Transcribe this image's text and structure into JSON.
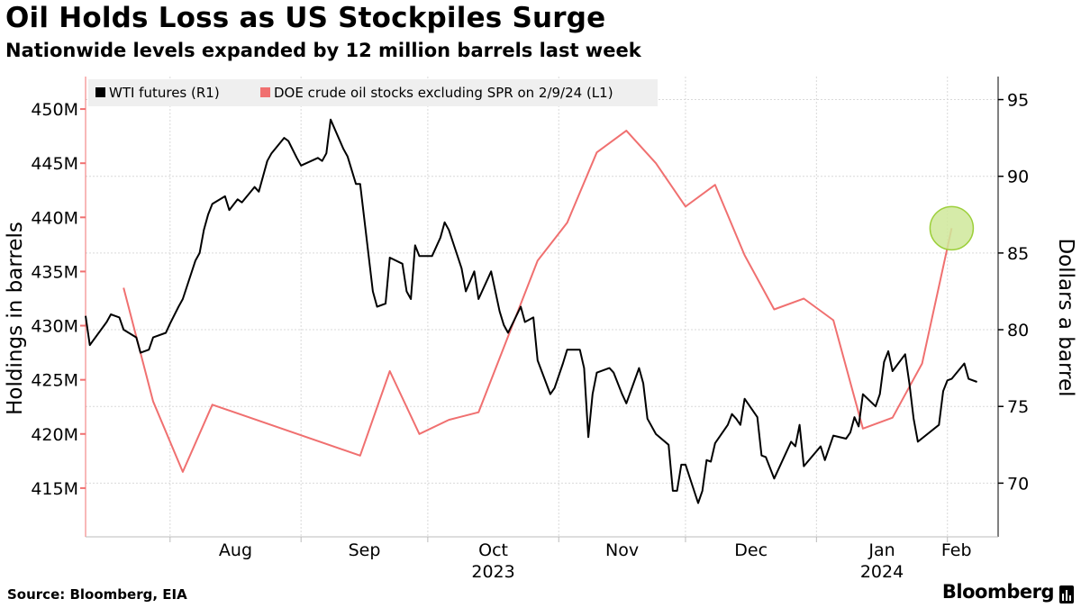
{
  "title": "Oil Holds Loss as US Stockpiles Surge",
  "subtitle": "Nationwide levels expanded by 12 million barrels last week",
  "footer": {
    "source": "Source: Bloomberg, EIA",
    "brand": "Bloomberg"
  },
  "colors": {
    "wti": "#000000",
    "stocks": "#f07070",
    "highlight_fill": "#cfe89a",
    "highlight_stroke": "#9ccf3a",
    "legend_bg": "#efefef",
    "grid": "#d9d9d9"
  },
  "icons": {
    "brand": "bloomberg-terminal-icon"
  },
  "chart_data": {
    "type": "line",
    "title": "Oil Holds Loss as US Stockpiles Surge",
    "subtitle": "Nationwide levels expanded by 12 million barrels last week",
    "x_tick_labels": [
      "Aug",
      "Sep",
      "Oct",
      "Nov",
      "Dec",
      "Jan",
      "Feb"
    ],
    "x_ticks": [
      "2023-08-01",
      "2023-09-01",
      "2023-10-01",
      "2023-11-01",
      "2023-12-01",
      "2024-01-01",
      "2024-02-01"
    ],
    "x_year_labels": [
      {
        "label": "2023",
        "date": "2023-10-01"
      },
      {
        "label": "2024",
        "date": "2024-01-01"
      }
    ],
    "xlim": [
      "2023-07-12",
      "2024-02-13"
    ],
    "left_axis": {
      "label": "Holdings in barrels",
      "ylim": [
        410.5,
        453
      ],
      "ticks": [
        415,
        420,
        425,
        430,
        435,
        440,
        445,
        450
      ],
      "tick_labels": [
        "415M",
        "420M",
        "425M",
        "430M",
        "435M",
        "440M",
        "445M",
        "450M"
      ]
    },
    "right_axis": {
      "label": "Dollars a barrel",
      "ylim": [
        66.5,
        96.5
      ],
      "ticks": [
        70,
        75,
        80,
        85,
        90,
        95
      ],
      "tick_labels": [
        "70",
        "75",
        "80",
        "85",
        "90",
        "95"
      ]
    },
    "legend_position": "top-left",
    "grid": true,
    "series": [
      {
        "name": "WTI futures (R1)",
        "axis": "right",
        "color": "#000000",
        "points": [
          [
            "2023-07-12",
            80.9
          ],
          [
            "2023-07-13",
            79.0
          ],
          [
            "2023-07-17",
            80.5
          ],
          [
            "2023-07-18",
            81.0
          ],
          [
            "2023-07-20",
            80.8
          ],
          [
            "2023-07-21",
            80.0
          ],
          [
            "2023-07-24",
            79.5
          ],
          [
            "2023-07-25",
            78.5
          ],
          [
            "2023-07-27",
            78.7
          ],
          [
            "2023-07-28",
            79.5
          ],
          [
            "2023-07-31",
            79.8
          ],
          [
            "2023-08-01",
            80.4
          ],
          [
            "2023-08-03",
            81.5
          ],
          [
            "2023-08-04",
            82.0
          ],
          [
            "2023-08-07",
            84.5
          ],
          [
            "2023-08-08",
            85.0
          ],
          [
            "2023-08-09",
            86.5
          ],
          [
            "2023-08-10",
            87.5
          ],
          [
            "2023-08-11",
            88.2
          ],
          [
            "2023-08-14",
            88.7
          ],
          [
            "2023-08-15",
            87.8
          ],
          [
            "2023-08-17",
            88.5
          ],
          [
            "2023-08-18",
            88.3
          ],
          [
            "2023-08-21",
            89.3
          ],
          [
            "2023-08-22",
            89.0
          ],
          [
            "2023-08-24",
            91.0
          ],
          [
            "2023-08-25",
            91.5
          ],
          [
            "2023-08-28",
            92.5
          ],
          [
            "2023-08-29",
            92.3
          ],
          [
            "2023-08-31",
            91.2
          ],
          [
            "2023-09-01",
            90.7
          ],
          [
            "2023-09-05",
            91.2
          ],
          [
            "2023-09-06",
            91.0
          ],
          [
            "2023-09-07",
            91.5
          ],
          [
            "2023-09-08",
            93.7
          ],
          [
            "2023-09-11",
            91.8
          ],
          [
            "2023-09-12",
            91.3
          ],
          [
            "2023-09-14",
            89.5
          ],
          [
            "2023-09-15",
            89.5
          ],
          [
            "2023-09-18",
            82.5
          ],
          [
            "2023-09-19",
            81.5
          ],
          [
            "2023-09-21",
            81.7
          ],
          [
            "2023-09-22",
            84.7
          ],
          [
            "2023-09-25",
            84.3
          ],
          [
            "2023-09-26",
            82.5
          ],
          [
            "2023-09-27",
            82.0
          ],
          [
            "2023-09-28",
            85.5
          ],
          [
            "2023-09-29",
            84.8
          ],
          [
            "2023-10-02",
            84.8
          ],
          [
            "2023-10-04",
            86.0
          ],
          [
            "2023-10-05",
            87.0
          ],
          [
            "2023-10-06",
            86.5
          ],
          [
            "2023-10-09",
            84.0
          ],
          [
            "2023-10-10",
            82.5
          ],
          [
            "2023-10-12",
            83.8
          ],
          [
            "2023-10-13",
            82.0
          ],
          [
            "2023-10-16",
            83.8
          ],
          [
            "2023-10-18",
            81.2
          ],
          [
            "2023-10-19",
            80.3
          ],
          [
            "2023-10-20",
            79.8
          ],
          [
            "2023-10-23",
            81.5
          ],
          [
            "2023-10-24",
            80.5
          ],
          [
            "2023-10-26",
            80.8
          ],
          [
            "2023-10-27",
            78.0
          ],
          [
            "2023-10-30",
            75.8
          ],
          [
            "2023-10-31",
            76.2
          ],
          [
            "2023-11-02",
            77.8
          ],
          [
            "2023-11-03",
            78.7
          ],
          [
            "2023-11-06",
            78.7
          ],
          [
            "2023-11-07",
            77.5
          ],
          [
            "2023-11-08",
            73.0
          ],
          [
            "2023-11-09",
            75.8
          ],
          [
            "2023-11-10",
            77.2
          ],
          [
            "2023-11-13",
            77.5
          ],
          [
            "2023-11-14",
            77.2
          ],
          [
            "2023-11-16",
            75.8
          ],
          [
            "2023-11-17",
            75.2
          ],
          [
            "2023-11-20",
            77.5
          ],
          [
            "2023-11-21",
            76.5
          ],
          [
            "2023-11-22",
            74.2
          ],
          [
            "2023-11-24",
            73.2
          ],
          [
            "2023-11-27",
            72.5
          ],
          [
            "2023-11-28",
            69.5
          ],
          [
            "2023-11-29",
            69.5
          ],
          [
            "2023-11-30",
            71.2
          ],
          [
            "2023-12-01",
            71.2
          ],
          [
            "2023-12-04",
            68.7
          ],
          [
            "2023-12-05",
            69.5
          ],
          [
            "2023-12-06",
            71.5
          ],
          [
            "2023-12-07",
            71.4
          ],
          [
            "2023-12-08",
            72.6
          ],
          [
            "2023-12-11",
            73.8
          ],
          [
            "2023-12-12",
            74.5
          ],
          [
            "2023-12-13",
            74.2
          ],
          [
            "2023-12-14",
            73.8
          ],
          [
            "2023-12-15",
            75.5
          ],
          [
            "2023-12-18",
            74.3
          ],
          [
            "2023-12-19",
            71.8
          ],
          [
            "2023-12-20",
            71.7
          ],
          [
            "2023-12-22",
            70.3
          ],
          [
            "2023-12-26",
            72.7
          ],
          [
            "2023-12-27",
            72.4
          ],
          [
            "2023-12-28",
            73.8
          ],
          [
            "2023-12-29",
            71.1
          ],
          [
            "2024-01-02",
            72.4
          ],
          [
            "2024-01-03",
            71.5
          ],
          [
            "2024-01-04",
            72.3
          ],
          [
            "2024-01-05",
            73.1
          ],
          [
            "2024-01-08",
            72.9
          ],
          [
            "2024-01-09",
            73.3
          ],
          [
            "2024-01-10",
            74.3
          ],
          [
            "2024-01-11",
            73.7
          ],
          [
            "2024-01-12",
            75.8
          ],
          [
            "2024-01-15",
            75.0
          ],
          [
            "2024-01-16",
            75.8
          ],
          [
            "2024-01-17",
            77.9
          ],
          [
            "2024-01-18",
            78.6
          ],
          [
            "2024-01-19",
            77.3
          ],
          [
            "2024-01-22",
            78.4
          ],
          [
            "2024-01-23",
            76.5
          ],
          [
            "2024-01-24",
            74.2
          ],
          [
            "2024-01-25",
            72.7
          ],
          [
            "2024-01-30",
            73.8
          ],
          [
            "2024-01-31",
            76.0
          ],
          [
            "2024-02-01",
            76.7
          ],
          [
            "2024-02-02",
            76.8
          ],
          [
            "2024-02-05",
            77.8
          ],
          [
            "2024-02-06",
            76.8
          ],
          [
            "2024-02-08",
            76.6
          ]
        ]
      },
      {
        "name": "DOE crude oil stocks excluding SPR on 2/9/24 (L1)",
        "axis": "left",
        "color": "#f07070",
        "points": [
          [
            "2023-07-21",
            433.5
          ],
          [
            "2023-07-28",
            423.0
          ],
          [
            "2023-08-04",
            416.5
          ],
          [
            "2023-08-11",
            422.7
          ],
          [
            "2023-09-15",
            418.0
          ],
          [
            "2023-09-22",
            425.8
          ],
          [
            "2023-09-29",
            420.0
          ],
          [
            "2023-10-06",
            421.3
          ],
          [
            "2023-10-13",
            422.0
          ],
          [
            "2023-10-27",
            436.0
          ],
          [
            "2023-11-03",
            439.5
          ],
          [
            "2023-11-10",
            446.0
          ],
          [
            "2023-11-17",
            448.0
          ],
          [
            "2023-11-24",
            445.0
          ],
          [
            "2023-12-01",
            441.0
          ],
          [
            "2023-12-08",
            443.0
          ],
          [
            "2023-12-15",
            436.5
          ],
          [
            "2023-12-22",
            431.5
          ],
          [
            "2023-12-29",
            432.5
          ],
          [
            "2024-01-05",
            430.5
          ],
          [
            "2024-01-12",
            420.5
          ],
          [
            "2024-01-19",
            421.5
          ],
          [
            "2024-01-26",
            426.5
          ],
          [
            "2024-02-02",
            439.0
          ]
        ],
        "highlight": "2024-02-02"
      }
    ]
  }
}
